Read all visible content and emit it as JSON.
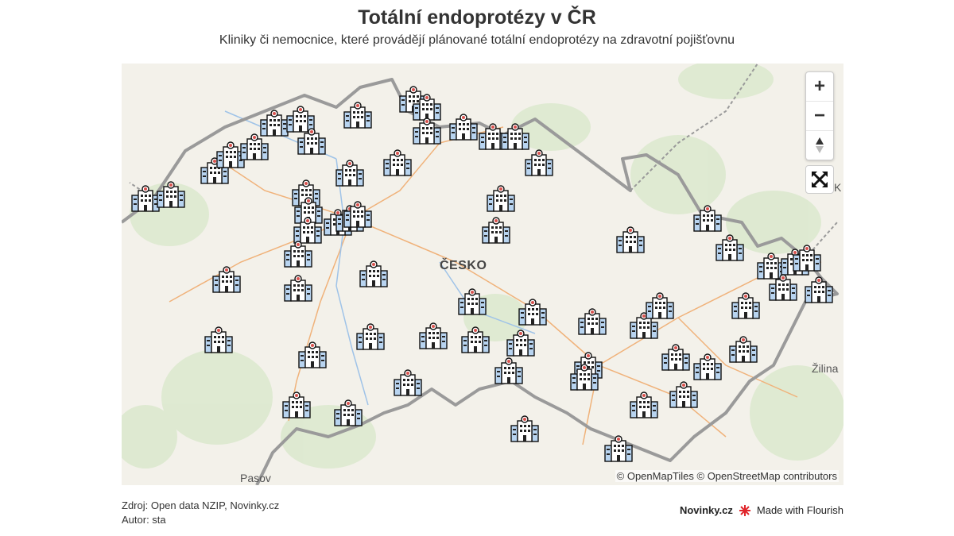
{
  "header": {
    "title": "Totální endoprotézy v ČR",
    "subtitle": "Kliniky či nemocnice, které provádějí plánované totální endoprotézy na zdravotní pojišťovnu"
  },
  "map": {
    "country_label": "ČESKO",
    "place_labels": [
      "Pasov",
      "Žilina",
      "K"
    ],
    "attribution": "© OpenMapTiles © OpenStreetMap contributors",
    "marker_icon": "hospital-icon",
    "controls": {
      "zoom_in": "+",
      "zoom_out": "−",
      "compass": "compass-icon",
      "fullscreen": "fullscreen-icon"
    }
  },
  "footer": {
    "source": "Zdroj: Open data NZIP, Novinky.cz",
    "author": "Autor: sta",
    "brand": "Novinky.cz",
    "made_with": "Made with Flourish"
  },
  "colors": {
    "border": "#9a9a9a",
    "road": "#f0b27a",
    "river": "#9fc3e8",
    "forest": "#d9e8cc",
    "hospital_fill": "#b8d4f0",
    "hospital_cross": "#d9534f"
  }
}
